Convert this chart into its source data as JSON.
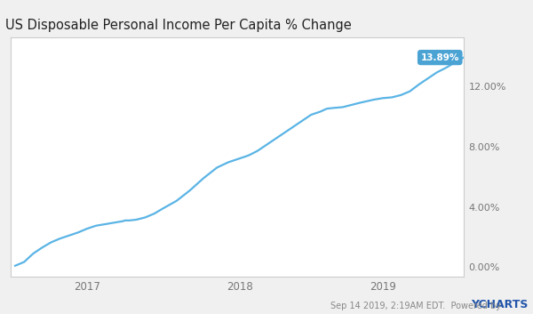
{
  "title": "US Disposable Personal Income Per Capita % Change",
  "title_fontsize": 10.5,
  "line_color": "#5ab4e5",
  "line_width": 1.6,
  "background_color": "#f0f0f0",
  "plot_bg_color": "#f5f5f5",
  "ytick_labels": [
    "0.00%",
    "4.00%",
    "8.00%",
    "12.00%"
  ],
  "ytick_values": [
    0.0,
    4.0,
    8.0,
    12.0
  ],
  "ylim": [
    -0.6,
    15.2
  ],
  "xtick_labels": [
    "2017",
    "2018",
    "2019"
  ],
  "end_label": "13.89%",
  "end_label_bg": "#4ba3d4",
  "end_label_text_color": "#ffffff",
  "footer_text": "Sep 14 2019, 2:19AM EDT.  Powered by",
  "footer_ychart": "YCHARTS",
  "grid_color": "#ffffff",
  "tick_color": "#777777",
  "border_color": "#cccccc",
  "data_points_x": [
    0.0,
    0.02,
    0.04,
    0.06,
    0.08,
    0.1,
    0.12,
    0.14,
    0.16,
    0.18,
    0.2,
    0.22,
    0.24,
    0.245,
    0.255,
    0.27,
    0.29,
    0.31,
    0.33,
    0.36,
    0.39,
    0.42,
    0.45,
    0.475,
    0.49,
    0.5,
    0.52,
    0.54,
    0.56,
    0.58,
    0.6,
    0.62,
    0.64,
    0.66,
    0.68,
    0.695,
    0.71,
    0.73,
    0.75,
    0.77,
    0.8,
    0.82,
    0.84,
    0.86,
    0.88,
    0.9,
    0.92,
    0.94,
    0.96,
    0.98,
    1.0
  ],
  "data_points_y": [
    0.1,
    0.35,
    0.9,
    1.3,
    1.65,
    1.9,
    2.1,
    2.3,
    2.55,
    2.75,
    2.85,
    2.95,
    3.05,
    3.1,
    3.1,
    3.15,
    3.3,
    3.55,
    3.9,
    4.4,
    5.1,
    5.9,
    6.6,
    6.95,
    7.1,
    7.2,
    7.4,
    7.7,
    8.1,
    8.5,
    8.9,
    9.3,
    9.7,
    10.1,
    10.3,
    10.5,
    10.55,
    10.6,
    10.75,
    10.9,
    11.1,
    11.2,
    11.25,
    11.4,
    11.65,
    12.1,
    12.5,
    12.9,
    13.2,
    13.55,
    13.89
  ]
}
